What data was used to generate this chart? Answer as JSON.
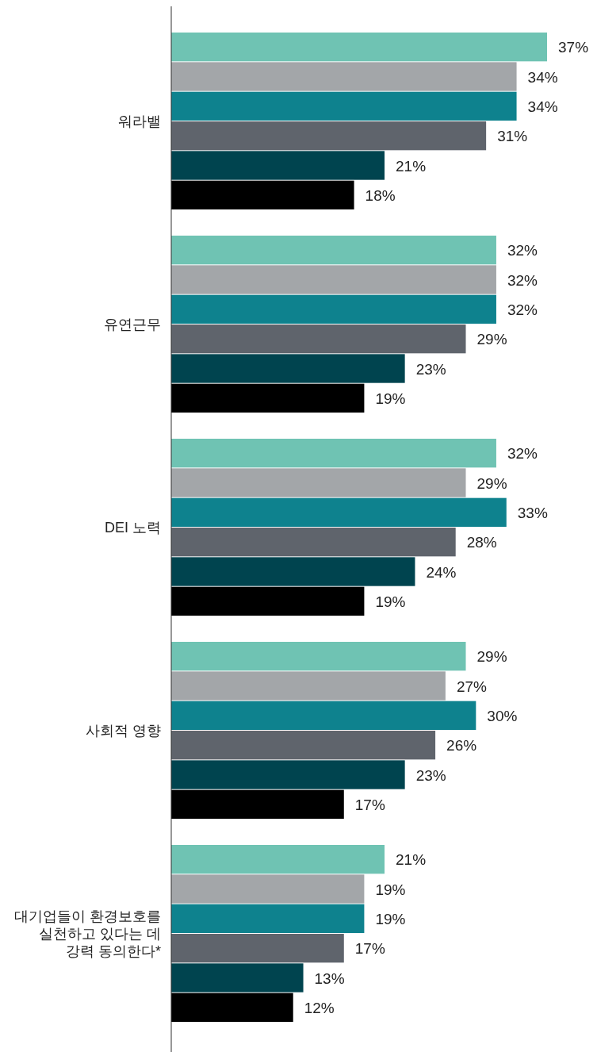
{
  "chart_data": {
    "type": "bar",
    "orientation": "horizontal",
    "categories": [
      "워라밸",
      "유연근무",
      "DEI 노력",
      "사회적 영향",
      "대기업들이 환경보호를 실천하고 있다는 데 강력 동의한다*"
    ],
    "series": [
      {
        "color": "#6fc3b3",
        "values": [
          37,
          32,
          32,
          29,
          21
        ],
        "value_labels": [
          "37%",
          "32%",
          "32%",
          "29%",
          "21%"
        ]
      },
      {
        "color": "#a3a6a9",
        "values": [
          34,
          32,
          29,
          27,
          19
        ],
        "value_labels": [
          "34%",
          "32%",
          "29%",
          "27%",
          "19%"
        ]
      },
      {
        "color": "#0e828e",
        "values": [
          34,
          32,
          33,
          30,
          19
        ],
        "value_labels": [
          "34%",
          "32%",
          "33%",
          "30%",
          "19%"
        ]
      },
      {
        "color": "#5f646c",
        "values": [
          31,
          29,
          28,
          26,
          17
        ],
        "value_labels": [
          "31%",
          "29%",
          "28%",
          "26%",
          "17%"
        ]
      },
      {
        "color": "#00444f",
        "values": [
          21,
          23,
          24,
          23,
          13
        ],
        "value_labels": [
          "21%",
          "23%",
          "24%",
          "23%",
          "13%"
        ]
      },
      {
        "color": "#000000",
        "values": [
          18,
          19,
          19,
          17,
          12
        ],
        "value_labels": [
          "18%",
          "19%",
          "19%",
          "17%",
          "12%"
        ]
      }
    ]
  }
}
